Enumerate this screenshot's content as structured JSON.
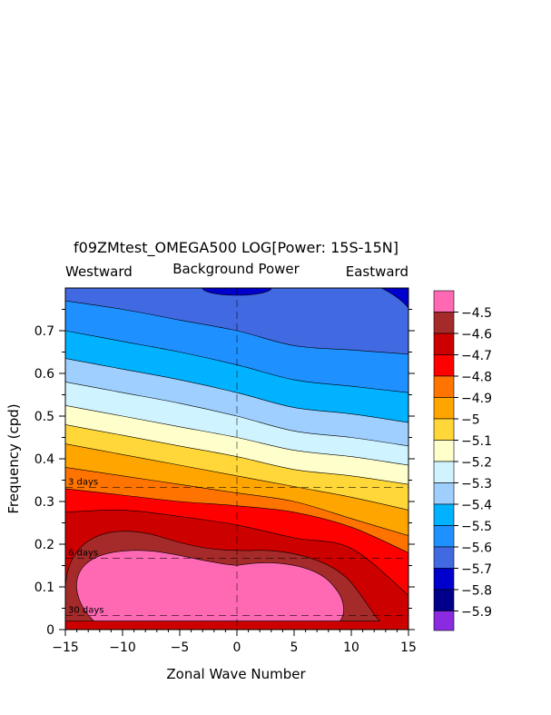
{
  "chart_data": {
    "type": "heatmap",
    "title": "f09ZMtest_OMEGA500 LOG[Power: 15S-15N]",
    "subtitle": "Background Power",
    "left_label": "Westward",
    "right_label": "Eastward",
    "xlabel": "Zonal Wave Number",
    "ylabel": "Frequency (cpd)",
    "xlim": [
      -15,
      15
    ],
    "ylim": [
      0,
      0.8
    ],
    "x_ticks": [
      -15,
      -10,
      -5,
      0,
      5,
      10,
      15
    ],
    "x_tick_labels": [
      "−15",
      "−10",
      "−5",
      "0",
      "5",
      "10",
      "15"
    ],
    "y_ticks": [
      0,
      0.1,
      0.2,
      0.3,
      0.4,
      0.5,
      0.6,
      0.7
    ],
    "y_tick_labels": [
      "0",
      "0.1",
      "0.2",
      "0.3",
      "0.4",
      "0.5",
      "0.6",
      "0.7"
    ],
    "period_lines": [
      {
        "label": "3 days",
        "frequency": 0.333
      },
      {
        "label": "6 days",
        "frequency": 0.167
      },
      {
        "label": "30 days",
        "frequency": 0.033
      }
    ],
    "zero_line_x": 0,
    "colorbar": [
      {
        "label": "−4.5",
        "color": "#ff69b4"
      },
      {
        "label": "−4.6",
        "color": "#a52a2a"
      },
      {
        "label": "−4.7",
        "color": "#cd0000"
      },
      {
        "label": "−4.8",
        "color": "#ff0000"
      },
      {
        "label": "−4.9",
        "color": "#ff7400"
      },
      {
        "label": "−5",
        "color": "#ffa500"
      },
      {
        "label": "−5.1",
        "color": "#ffd738"
      },
      {
        "label": "−5.2",
        "color": "#ffffcc"
      },
      {
        "label": "−5.3",
        "color": "#cff3ff"
      },
      {
        "label": "−5.4",
        "color": "#9ecfff"
      },
      {
        "label": "−5.5",
        "color": "#00b2ff"
      },
      {
        "label": "−5.6",
        "color": "#1e90ff"
      },
      {
        "label": "−5.7",
        "color": "#4169e1"
      },
      {
        "label": "−5.8",
        "color": "#0000cd"
      },
      {
        "label": "−5.9",
        "color": "#00008b"
      }
    ],
    "colorbar_bottom_color": "#8a2be2",
    "contour_bands": [
      {
        "level": -5.6,
        "color": "#4169e1",
        "y_upper": [
          0.8,
          0.8,
          0.8,
          0.8,
          0.8,
          0.8,
          0.8
        ]
      },
      {
        "level": -5.5,
        "color": "#1e90ff",
        "y_upper": [
          0.77,
          0.75,
          0.725,
          0.7,
          0.665,
          0.655,
          0.645
        ]
      },
      {
        "level": -5.4,
        "color": "#00b2ff",
        "y_upper": [
          0.7,
          0.675,
          0.65,
          0.62,
          0.585,
          0.57,
          0.555
        ]
      },
      {
        "level": -5.3,
        "color": "#9ecfff",
        "y_upper": [
          0.635,
          0.61,
          0.585,
          0.555,
          0.52,
          0.505,
          0.485
        ]
      },
      {
        "level": -5.2,
        "color": "#cff3ff",
        "y_upper": [
          0.58,
          0.555,
          0.53,
          0.5,
          0.465,
          0.45,
          0.43
        ]
      },
      {
        "level": -5.1,
        "color": "#ffffcc",
        "y_upper": [
          0.525,
          0.5,
          0.475,
          0.45,
          0.42,
          0.405,
          0.385
        ]
      },
      {
        "level": -5.0,
        "color": "#ffd738",
        "y_upper": [
          0.48,
          0.455,
          0.43,
          0.405,
          0.375,
          0.36,
          0.34
        ]
      },
      {
        "level": -4.9,
        "color": "#ffa500",
        "y_upper": [
          0.435,
          0.41,
          0.385,
          0.36,
          0.335,
          0.31,
          0.28
        ]
      },
      {
        "level": -4.8,
        "color": "#ff7400",
        "y_upper": [
          0.38,
          0.36,
          0.34,
          0.32,
          0.3,
          0.26,
          0.22
        ]
      },
      {
        "level": -4.7,
        "color": "#ff0000",
        "y_upper": [
          0.33,
          0.315,
          0.3,
          0.29,
          0.275,
          0.24,
          0.18
        ]
      },
      {
        "level": -4.6,
        "color": "#cd0000",
        "y_upper": [
          0.275,
          0.28,
          0.265,
          0.245,
          0.215,
          0.19,
          0.08
        ]
      }
    ]
  }
}
